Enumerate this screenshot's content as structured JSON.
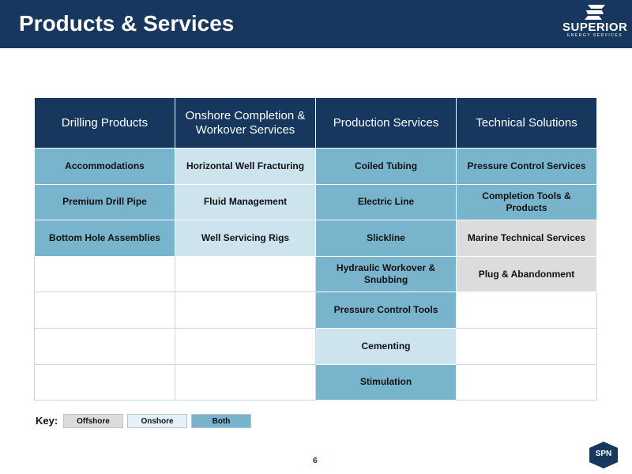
{
  "header": {
    "title": "Products & Services",
    "logo": {
      "name": "SUPERIOR",
      "tagline": "ENERGY SERVICES",
      "icon": "superior-s-icon"
    }
  },
  "table": {
    "columns": [
      "Drilling Products",
      "Onshore Completion & Workover Services",
      "Production Services",
      "Technical Solutions"
    ],
    "rows": [
      [
        {
          "text": "Accommodations",
          "type": "both"
        },
        {
          "text": "Horizontal Well Fracturing",
          "type": "onshore"
        },
        {
          "text": "Coiled Tubing",
          "type": "both"
        },
        {
          "text": "Pressure Control Services",
          "type": "both"
        }
      ],
      [
        {
          "text": "Premium Drill Pipe",
          "type": "both"
        },
        {
          "text": "Fluid Management",
          "type": "onshore"
        },
        {
          "text": "Electric Line",
          "type": "both"
        },
        {
          "text": "Completion Tools & Products",
          "type": "both"
        }
      ],
      [
        {
          "text": "Bottom Hole Assemblies",
          "type": "both"
        },
        {
          "text": "Well Servicing Rigs",
          "type": "onshore"
        },
        {
          "text": "Slickline",
          "type": "both"
        },
        {
          "text": "Marine Technical Services",
          "type": "offshore"
        }
      ],
      [
        {
          "text": "",
          "type": "empty"
        },
        {
          "text": "",
          "type": "empty"
        },
        {
          "text": "Hydraulic Workover & Snubbing",
          "type": "both"
        },
        {
          "text": "Plug & Abandonment",
          "type": "offshore"
        }
      ],
      [
        {
          "text": "",
          "type": "empty"
        },
        {
          "text": "",
          "type": "empty"
        },
        {
          "text": "Pressure Control Tools",
          "type": "both"
        },
        {
          "text": "",
          "type": "empty"
        }
      ],
      [
        {
          "text": "",
          "type": "empty"
        },
        {
          "text": "",
          "type": "empty"
        },
        {
          "text": "Cementing",
          "type": "onshore"
        },
        {
          "text": "",
          "type": "empty"
        }
      ],
      [
        {
          "text": "",
          "type": "empty"
        },
        {
          "text": "",
          "type": "empty"
        },
        {
          "text": "Stimulation",
          "type": "both"
        },
        {
          "text": "",
          "type": "empty"
        }
      ]
    ]
  },
  "key": {
    "label": "Key:",
    "offshore": "Offshore",
    "onshore": "Onshore",
    "both": "Both"
  },
  "colors": {
    "navy": "#17375e",
    "both": "#78b4cc",
    "onshore": "#cde4ee",
    "offshore": "#dcdcdc"
  },
  "footer": {
    "page_number": "6",
    "badge": "SPN"
  }
}
